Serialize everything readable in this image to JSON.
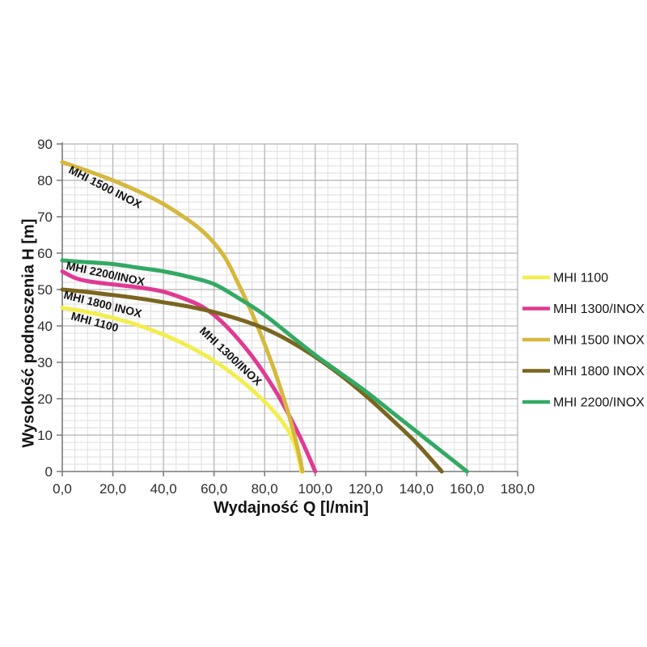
{
  "page": {
    "background": "#ffffff"
  },
  "chart_data": {
    "type": "line",
    "title": "",
    "xlabel": "Wydajność Q [l/min]",
    "ylabel": "Wysokość podnoszenia H [m]",
    "xlim": [
      0,
      180
    ],
    "ylim": [
      0,
      90
    ],
    "x_ticks": [
      "0,0",
      "20,0",
      "40,0",
      "60,0",
      "80,0",
      "100,0",
      "120,0",
      "140,0",
      "160,0",
      "180,0"
    ],
    "y_ticks": [
      "0",
      "10",
      "20",
      "30",
      "40",
      "50",
      "60",
      "70",
      "80",
      "90"
    ],
    "grid": {
      "on": true,
      "minor_x_step": 5,
      "minor_y_step": 2,
      "major_x_step": 20,
      "major_y_step": 10,
      "minor_color": "#dedede",
      "major_color": "#b2b2b2",
      "axis_color": "#7f7f7f"
    },
    "legend": {
      "position": "right",
      "entries": [
        {
          "label": "MHI 1100",
          "color": "#f2ee4f"
        },
        {
          "label": "MHI 1300/INOX",
          "color": "#e03a92"
        },
        {
          "label": "MHI 1500 INOX",
          "color": "#d5b83e"
        },
        {
          "label": "MHI 1800 INOX",
          "color": "#7a651f"
        },
        {
          "label": "MHI 2200/INOX",
          "color": "#33a963"
        }
      ]
    },
    "series": [
      {
        "name": "MHI 1100",
        "color": "#f2ee4f",
        "points": [
          [
            0,
            45
          ],
          [
            10,
            43.8
          ],
          [
            20,
            42.2
          ],
          [
            30,
            40.2
          ],
          [
            40,
            37.6
          ],
          [
            50,
            34.4
          ],
          [
            60,
            30.4
          ],
          [
            70,
            25.4
          ],
          [
            80,
            19.2
          ],
          [
            85,
            15.4
          ],
          [
            90,
            10.4
          ],
          [
            93,
            5
          ],
          [
            94.5,
            0
          ]
        ],
        "label": {
          "text": "MHI 1100",
          "x": 3.2,
          "y": 41.8,
          "angle": 15
        }
      },
      {
        "name": "MHI 1300/INOX",
        "color": "#e03a92",
        "points": [
          [
            0,
            55
          ],
          [
            5,
            53.2
          ],
          [
            10,
            52.3
          ],
          [
            20,
            51.4
          ],
          [
            30,
            50.6
          ],
          [
            40,
            49.4
          ],
          [
            50,
            47
          ],
          [
            55,
            45.4
          ],
          [
            60,
            43
          ],
          [
            65,
            39.8
          ],
          [
            70,
            36
          ],
          [
            75,
            31.7
          ],
          [
            80,
            26.8
          ],
          [
            85,
            21.3
          ],
          [
            90,
            15
          ],
          [
            95,
            8
          ],
          [
            100,
            0
          ]
        ],
        "label": {
          "text": "MHI 1300/INOX",
          "x": 54,
          "y": 38.4,
          "angle": 43
        }
      },
      {
        "name": "MHI 1500 INOX",
        "color": "#d5b83e",
        "points": [
          [
            0,
            85
          ],
          [
            10,
            82.6
          ],
          [
            20,
            80
          ],
          [
            30,
            77
          ],
          [
            40,
            73.5
          ],
          [
            50,
            69
          ],
          [
            55,
            66.3
          ],
          [
            60,
            62.8
          ],
          [
            65,
            58
          ],
          [
            70,
            51
          ],
          [
            75,
            43.5
          ],
          [
            80,
            35
          ],
          [
            85,
            25.5
          ],
          [
            90,
            14.5
          ],
          [
            93,
            6.5
          ],
          [
            95,
            0
          ]
        ],
        "label": {
          "text": "MHI 1500 INOX",
          "x": 2.2,
          "y": 82.2,
          "angle": 27
        }
      },
      {
        "name": "MHI 1800 INOX",
        "color": "#7a651f",
        "points": [
          [
            0,
            50
          ],
          [
            10,
            49.3
          ],
          [
            20,
            48.5
          ],
          [
            30,
            47.6
          ],
          [
            40,
            46.5
          ],
          [
            50,
            45.3
          ],
          [
            60,
            43.8
          ],
          [
            70,
            41.8
          ],
          [
            80,
            39.3
          ],
          [
            90,
            35.8
          ],
          [
            100,
            31.5
          ],
          [
            110,
            26.5
          ],
          [
            120,
            20.8
          ],
          [
            130,
            14.5
          ],
          [
            140,
            7.8
          ],
          [
            150,
            0
          ]
        ],
        "label": {
          "text": "MHI 1800 INOX",
          "x": 0.3,
          "y": 47.6,
          "angle": 14
        }
      },
      {
        "name": "MHI 2200/INOX",
        "color": "#33a963",
        "points": [
          [
            0,
            58
          ],
          [
            10,
            57.5
          ],
          [
            20,
            57
          ],
          [
            30,
            56
          ],
          [
            40,
            55
          ],
          [
            50,
            53.5
          ],
          [
            60,
            51.5
          ],
          [
            70,
            47.5
          ],
          [
            80,
            43
          ],
          [
            90,
            37.5
          ],
          [
            100,
            32
          ],
          [
            110,
            27
          ],
          [
            120,
            22
          ],
          [
            130,
            16.5
          ],
          [
            140,
            11
          ],
          [
            150,
            5.5
          ],
          [
            160,
            0
          ]
        ],
        "label": {
          "text": "MHI 2200/INOX",
          "x": 1.3,
          "y": 55.6,
          "angle": 12
        }
      }
    ]
  }
}
